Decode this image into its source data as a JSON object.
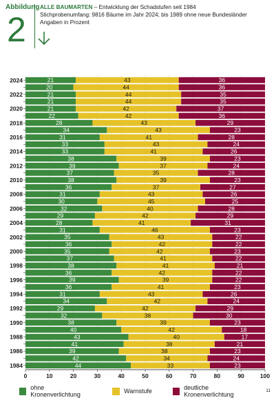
{
  "figure": {
    "label": "Abbildung",
    "number": "2",
    "title_bold": "ALLE BAUMARTEN",
    "title_rest": " – Entwicklung der Schadstufen seit 1984",
    "subtitle_line1": "Stichprobenumfang: 9816 Bäume im Jahr 2024; bis 1989 ohne neue Bundesländer",
    "subtitle_line2": "Angaben in Prozent",
    "page_number": "11",
    "icon": "arrow-down-icon"
  },
  "colors": {
    "green": "#3b8a3e",
    "yellow": "#e6c229",
    "red": "#8c0d3c",
    "accent": "#2e7a3c"
  },
  "chart_data": {
    "type": "bar",
    "orientation": "horizontal",
    "stacked": true,
    "xlim": [
      0,
      100
    ],
    "xticks": [
      "0",
      "10",
      "20",
      "30",
      "40",
      "50",
      "60",
      "70",
      "80",
      "90",
      "100"
    ],
    "grid": true,
    "legend_position": "bottom",
    "categories": [
      "2024",
      "2023",
      "2022",
      "2021",
      "2020",
      "2019",
      "2018",
      "2017",
      "2016",
      "2015",
      "2014",
      "2013",
      "2012",
      "2011",
      "2010",
      "2009",
      "2008",
      "2007",
      "2006",
      "2005",
      "2004",
      "2003",
      "2002",
      "2001",
      "2000",
      "1999",
      "1998",
      "1997",
      "1996",
      "1995",
      "1994",
      "1993",
      "1992",
      "1991",
      "1990",
      "1989",
      "1988",
      "1987",
      "1986",
      "1985",
      "1984"
    ],
    "tick_labels": [
      "2024",
      "",
      "2022",
      "",
      "2020",
      "",
      "2018",
      "",
      "2016",
      "",
      "2014",
      "",
      "2012",
      "",
      "2010",
      "",
      "2008",
      "",
      "2006",
      "",
      "2004",
      "",
      "2002",
      "",
      "2000",
      "",
      "1998",
      "",
      "1996",
      "",
      "1994",
      "",
      "1992",
      "",
      "1990",
      "",
      "1988",
      "",
      "1986",
      "",
      "1984"
    ],
    "series": [
      {
        "name": "ohne Kronenverlichtung",
        "color": "#3b8a3e",
        "values": [
          21,
          20,
          21,
          21,
          21,
          22,
          28,
          34,
          31,
          33,
          33,
          38,
          39,
          37,
          38,
          36,
          31,
          30,
          32,
          29,
          28,
          31,
          35,
          36,
          35,
          37,
          38,
          36,
          39,
          36,
          31,
          34,
          29,
          32,
          38,
          40,
          43,
          41,
          39,
          42,
          44
        ]
      },
      {
        "name": "Warnstufe",
        "color": "#e6c229",
        "values": [
          43,
          44,
          44,
          44,
          42,
          42,
          43,
          43,
          41,
          43,
          41,
          39,
          37,
          35,
          39,
          37,
          43,
          45,
          40,
          42,
          41,
          46,
          43,
          42,
          42,
          41,
          41,
          42,
          39,
          41,
          43,
          42,
          42,
          38,
          39,
          42,
          40,
          38,
          38,
          34,
          33
        ]
      },
      {
        "name": "deutliche Kronenverlichtung",
        "color": "#8c0d3c",
        "values": [
          36,
          36,
          35,
          35,
          37,
          36,
          29,
          23,
          28,
          24,
          26,
          23,
          24,
          28,
          23,
          27,
          26,
          25,
          28,
          29,
          31,
          23,
          22,
          22,
          23,
          22,
          21,
          22,
          22,
          23,
          26,
          24,
          29,
          30,
          23,
          18,
          17,
          21,
          23,
          24,
          23
        ]
      }
    ]
  }
}
